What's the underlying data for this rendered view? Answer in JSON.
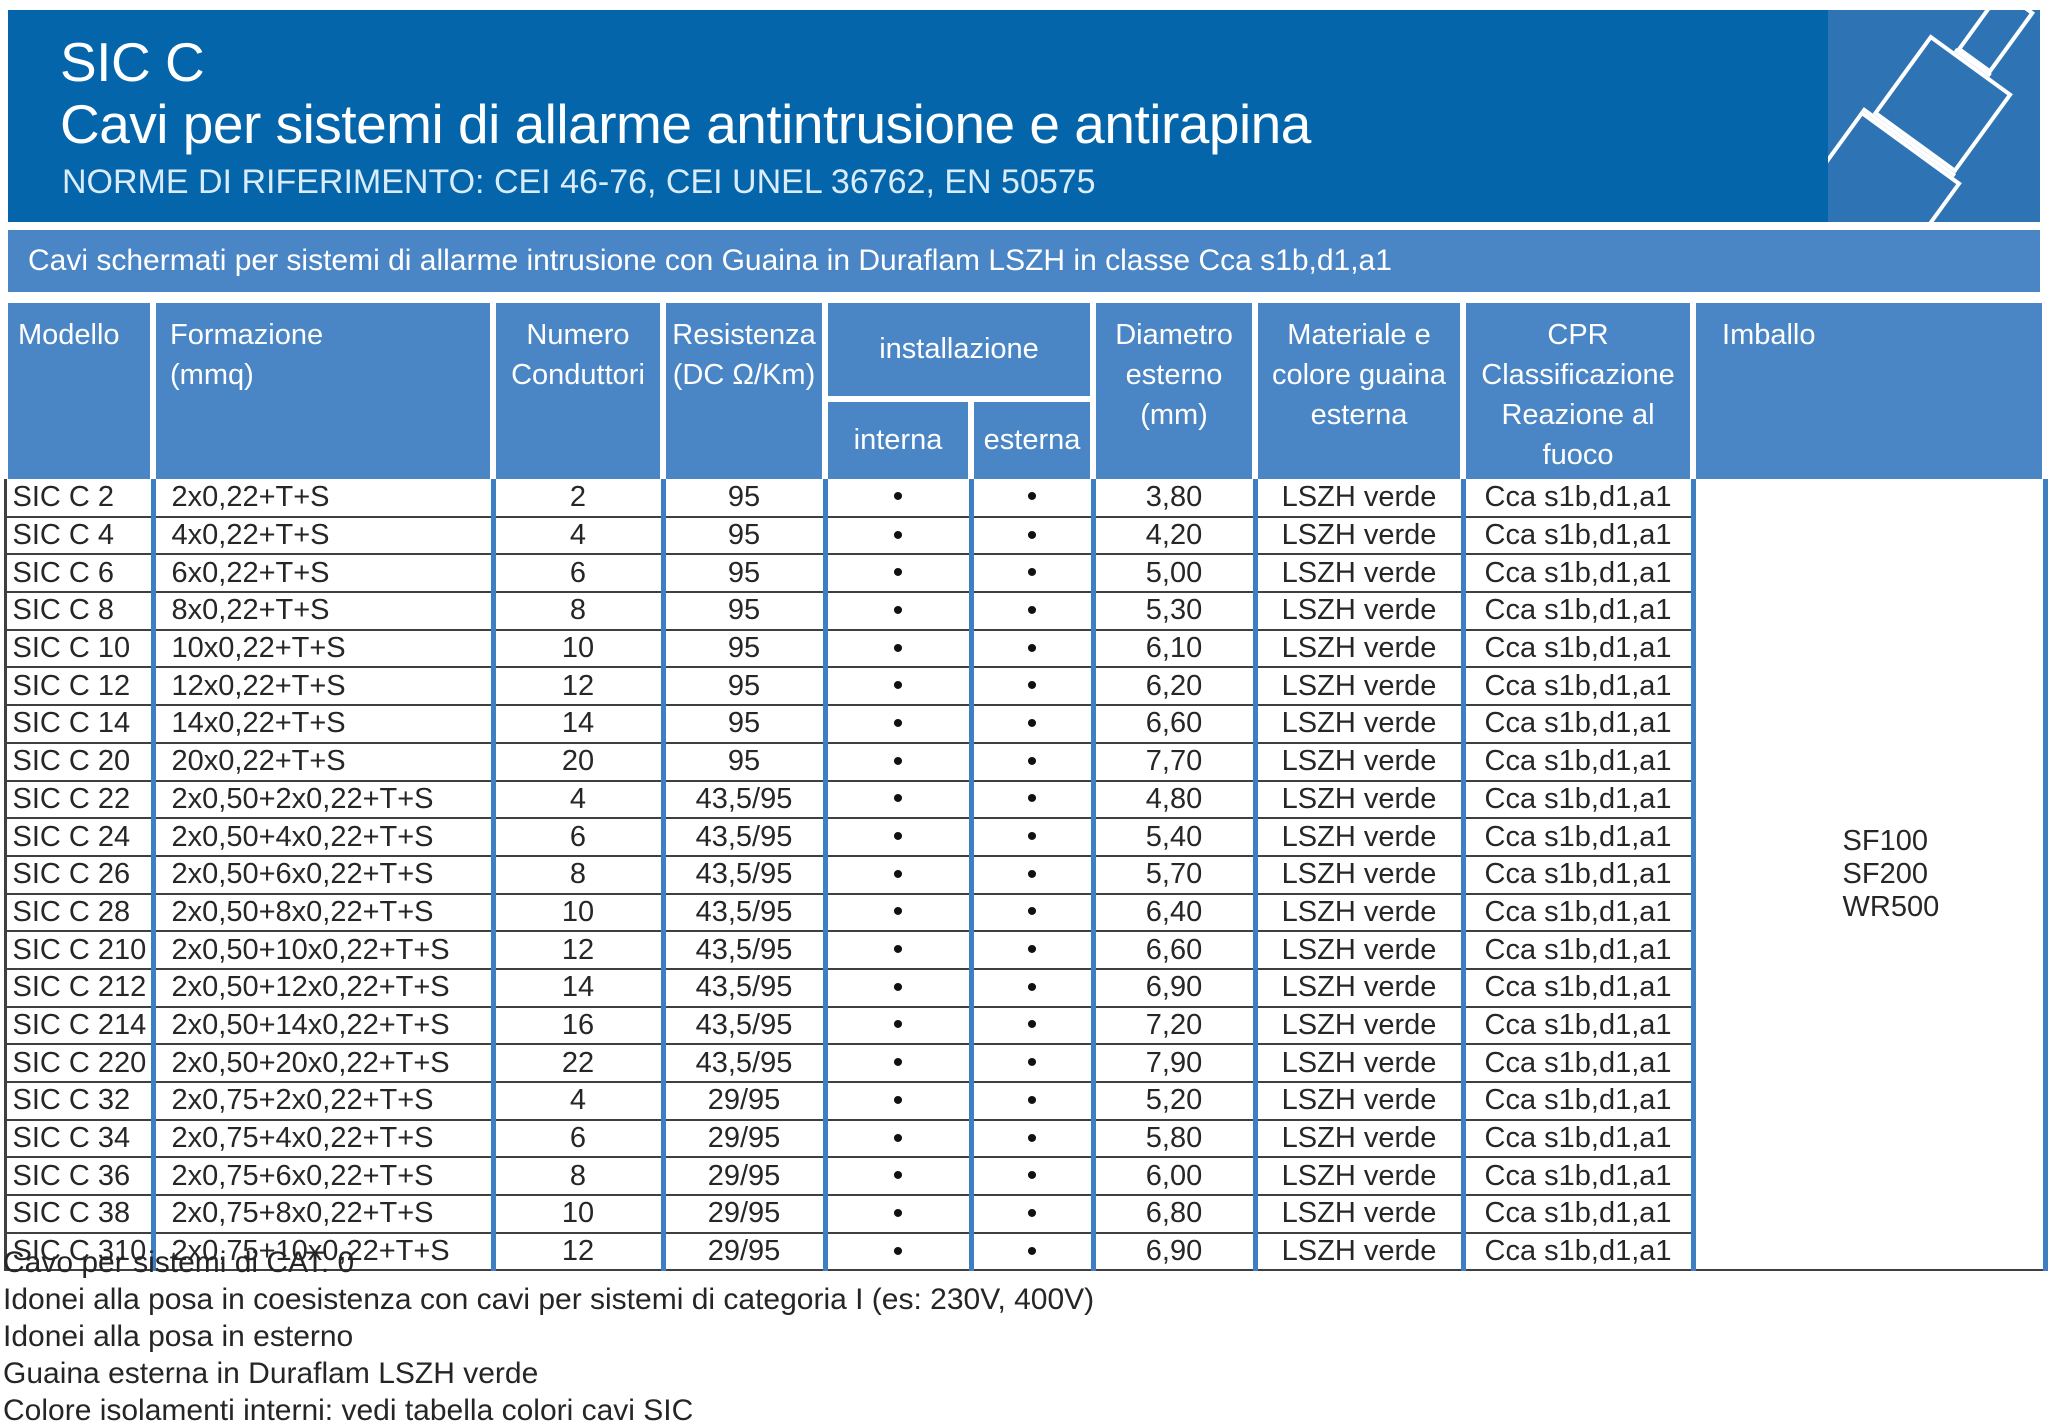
{
  "header": {
    "product_code": "SIC C",
    "title": "Cavi per sistemi di allarme antintrusione e antirapina",
    "norms": "NORME DI RIFERIMENTO: CEI 46-76, CEI UNEL 36762, EN 50575"
  },
  "banner": {
    "text": "Cavi schermati per sistemi di allarme intrusione con Guaina in Duraflam LSZH in classe Cca s1b,d1,a1"
  },
  "colors": {
    "header_band": "#0565ab",
    "icon_square": "#2e74b4",
    "banner_blue": "#4a86c6",
    "column_line_blue": "#3e7ec2",
    "row_line_dark": "#3f3f3f",
    "norms_text": "#d9ecf9"
  },
  "table": {
    "header_labels": {
      "modello": "Modello",
      "formazione": "Formazione\n(mmq)",
      "numero": "Numero\nConduttori",
      "resistenza": "Resistenza\n(DC Ω/Km)",
      "installazione": "installazione",
      "interna": "interna",
      "esterna": "esterna",
      "diametro": "Diametro\nesterno\n(mm)",
      "materiale": "Materiale e\ncolore guaina\nesterna",
      "cpr": "CPR\nClassificazione\nReazione al fuoco",
      "imballo": "Imballo"
    },
    "imballo_codes": [
      "SF100",
      "SF200",
      "WR500"
    ],
    "rows": [
      {
        "modello": "SIC C 2",
        "formazione": "2x0,22+T+S",
        "conduttori": "2",
        "resistenza": "95",
        "interna": "•",
        "esterna": "•",
        "diametro": "3,80",
        "guaina": "LSZH verde",
        "cpr": "Cca s1b,d1,a1"
      },
      {
        "modello": "SIC C 4",
        "formazione": "4x0,22+T+S",
        "conduttori": "4",
        "resistenza": "95",
        "interna": "•",
        "esterna": "•",
        "diametro": "4,20",
        "guaina": "LSZH verde",
        "cpr": "Cca s1b,d1,a1"
      },
      {
        "modello": "SIC C 6",
        "formazione": "6x0,22+T+S",
        "conduttori": "6",
        "resistenza": "95",
        "interna": "•",
        "esterna": "•",
        "diametro": "5,00",
        "guaina": "LSZH verde",
        "cpr": "Cca s1b,d1,a1"
      },
      {
        "modello": "SIC C 8",
        "formazione": "8x0,22+T+S",
        "conduttori": "8",
        "resistenza": "95",
        "interna": "•",
        "esterna": "•",
        "diametro": "5,30",
        "guaina": "LSZH verde",
        "cpr": "Cca s1b,d1,a1"
      },
      {
        "modello": "SIC C 10",
        "formazione": "10x0,22+T+S",
        "conduttori": "10",
        "resistenza": "95",
        "interna": "•",
        "esterna": "•",
        "diametro": "6,10",
        "guaina": "LSZH verde",
        "cpr": "Cca s1b,d1,a1"
      },
      {
        "modello": "SIC C 12",
        "formazione": "12x0,22+T+S",
        "conduttori": "12",
        "resistenza": "95",
        "interna": "•",
        "esterna": "•",
        "diametro": "6,20",
        "guaina": "LSZH verde",
        "cpr": "Cca s1b,d1,a1"
      },
      {
        "modello": "SIC C 14",
        "formazione": "14x0,22+T+S",
        "conduttori": "14",
        "resistenza": "95",
        "interna": "•",
        "esterna": "•",
        "diametro": "6,60",
        "guaina": "LSZH verde",
        "cpr": "Cca s1b,d1,a1"
      },
      {
        "modello": "SIC C 20",
        "formazione": "20x0,22+T+S",
        "conduttori": "20",
        "resistenza": "95",
        "interna": "•",
        "esterna": "•",
        "diametro": "7,70",
        "guaina": "LSZH verde",
        "cpr": "Cca s1b,d1,a1"
      },
      {
        "modello": "SIC C 22",
        "formazione": "2x0,50+2x0,22+T+S",
        "conduttori": "4",
        "resistenza": "43,5/95",
        "interna": "•",
        "esterna": "•",
        "diametro": "4,80",
        "guaina": "LSZH verde",
        "cpr": "Cca s1b,d1,a1"
      },
      {
        "modello": "SIC C 24",
        "formazione": "2x0,50+4x0,22+T+S",
        "conduttori": "6",
        "resistenza": "43,5/95",
        "interna": "•",
        "esterna": "•",
        "diametro": "5,40",
        "guaina": "LSZH verde",
        "cpr": "Cca s1b,d1,a1"
      },
      {
        "modello": "SIC C 26",
        "formazione": "2x0,50+6x0,22+T+S",
        "conduttori": "8",
        "resistenza": "43,5/95",
        "interna": "•",
        "esterna": "•",
        "diametro": "5,70",
        "guaina": "LSZH verde",
        "cpr": "Cca s1b,d1,a1"
      },
      {
        "modello": "SIC C 28",
        "formazione": "2x0,50+8x0,22+T+S",
        "conduttori": "10",
        "resistenza": "43,5/95",
        "interna": "•",
        "esterna": "•",
        "diametro": "6,40",
        "guaina": "LSZH verde",
        "cpr": "Cca s1b,d1,a1"
      },
      {
        "modello": "SIC C 210",
        "formazione": "2x0,50+10x0,22+T+S",
        "conduttori": "12",
        "resistenza": "43,5/95",
        "interna": "•",
        "esterna": "•",
        "diametro": "6,60",
        "guaina": "LSZH verde",
        "cpr": "Cca s1b,d1,a1"
      },
      {
        "modello": "SIC C 212",
        "formazione": "2x0,50+12x0,22+T+S",
        "conduttori": "14",
        "resistenza": "43,5/95",
        "interna": "•",
        "esterna": "•",
        "diametro": "6,90",
        "guaina": "LSZH verde",
        "cpr": "Cca s1b,d1,a1"
      },
      {
        "modello": "SIC C 214",
        "formazione": "2x0,50+14x0,22+T+S",
        "conduttori": "16",
        "resistenza": "43,5/95",
        "interna": "•",
        "esterna": "•",
        "diametro": "7,20",
        "guaina": "LSZH verde",
        "cpr": "Cca s1b,d1,a1"
      },
      {
        "modello": "SIC C 220",
        "formazione": "2x0,50+20x0,22+T+S",
        "conduttori": "22",
        "resistenza": "43,5/95",
        "interna": "•",
        "esterna": "•",
        "diametro": "7,90",
        "guaina": "LSZH verde",
        "cpr": "Cca s1b,d1,a1"
      },
      {
        "modello": "SIC C 32",
        "formazione": "2x0,75+2x0,22+T+S",
        "conduttori": "4",
        "resistenza": "29/95",
        "interna": "•",
        "esterna": "•",
        "diametro": "5,20",
        "guaina": "LSZH verde",
        "cpr": "Cca s1b,d1,a1"
      },
      {
        "modello": "SIC C 34",
        "formazione": "2x0,75+4x0,22+T+S",
        "conduttori": "6",
        "resistenza": "29/95",
        "interna": "•",
        "esterna": "•",
        "diametro": "5,80",
        "guaina": "LSZH verde",
        "cpr": "Cca s1b,d1,a1"
      },
      {
        "modello": "SIC C 36",
        "formazione": "2x0,75+6x0,22+T+S",
        "conduttori": "8",
        "resistenza": "29/95",
        "interna": "•",
        "esterna": "•",
        "diametro": "6,00",
        "guaina": "LSZH verde",
        "cpr": "Cca s1b,d1,a1"
      },
      {
        "modello": "SIC C 38",
        "formazione": "2x0,75+8x0,22+T+S",
        "conduttori": "10",
        "resistenza": "29/95",
        "interna": "•",
        "esterna": "•",
        "diametro": "6,80",
        "guaina": "LSZH verde",
        "cpr": "Cca s1b,d1,a1"
      },
      {
        "modello": "SIC C 310",
        "formazione": "2x0,75+10x0,22+T+S",
        "conduttori": "12",
        "resistenza": "29/95",
        "interna": "•",
        "esterna": "•",
        "diametro": "6,90",
        "guaina": "LSZH verde",
        "cpr": "Cca s1b,d1,a1"
      }
    ]
  },
  "notes": [
    "Cavo per sistemi di CAT. 0",
    "Idonei alla posa in coesistenza con cavi per sistemi di categoria I (es: 230V, 400V)",
    "Idonei alla posa in esterno",
    "Guaina esterna in Duraflam LSZH verde",
    "Colore isolamenti interni: vedi tabella colori cavi SIC"
  ]
}
